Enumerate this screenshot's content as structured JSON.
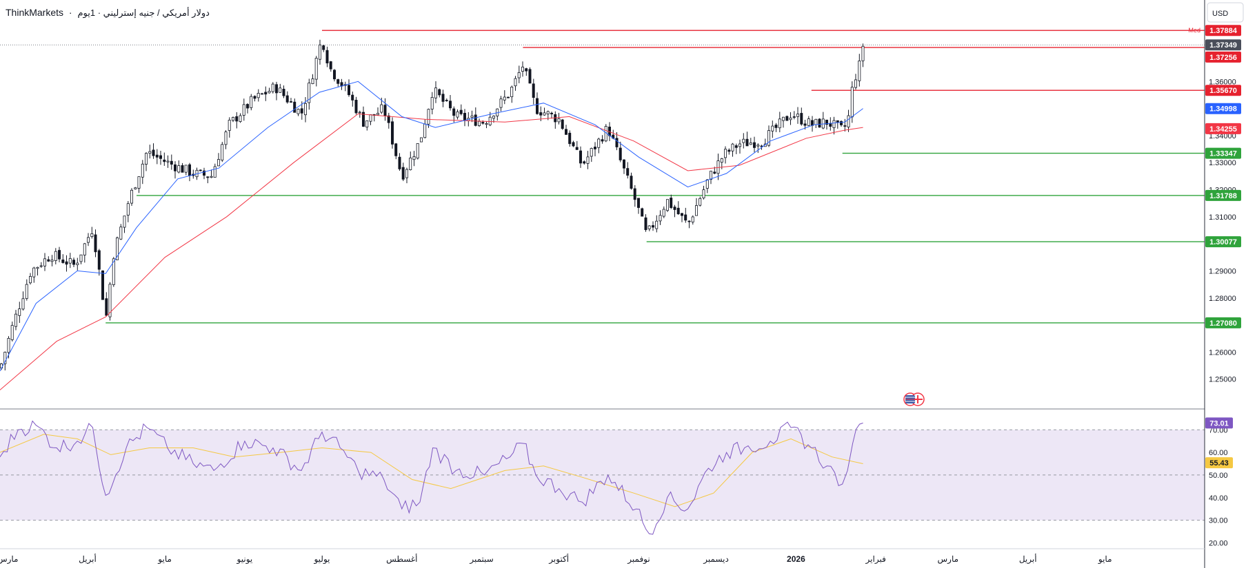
{
  "header": {
    "brand": "ThinkMarkets",
    "separator": "·",
    "symbol": "دولار أمريكي / جنيه إسترليني · 1يوم"
  },
  "currency_button": {
    "label": "USD"
  },
  "colors": {
    "resistance": "#e6212e",
    "support": "#2fa33b",
    "ema_fast": "#2962ff",
    "ema_slow": "#f23645",
    "rsi_line": "#7e57c2",
    "rsi_ma": "#f5c842",
    "rsi_band": "#ede7f6",
    "current_price": "#4a4e5a",
    "candle": "#131722"
  },
  "chart_data": [
    {
      "type": "candlestick",
      "title": "",
      "ylim": [
        1.24,
        1.385
      ],
      "y_ticks": [
        "1.25000",
        "1.26000",
        "1.27000",
        "1.28000",
        "1.29000",
        "1.30000",
        "1.31000",
        "1.32000",
        "1.33000",
        "1.34000",
        "1.35000",
        "1.36000"
      ],
      "x_ticks": [
        "مارس",
        "أبريل",
        "مايو",
        "يونيو",
        "يوليو",
        "أغسطس",
        "سبتمبر",
        "أكتوبر",
        "نوفمبر",
        "ديسمبر",
        "2026",
        "فبراير",
        "مارس",
        "أبريل",
        "مايو"
      ],
      "x_ticks_bold": [
        false,
        false,
        false,
        false,
        false,
        false,
        false,
        false,
        false,
        false,
        true,
        false,
        false,
        false,
        false
      ],
      "close_path": [
        {
          "d": "2025-02-26",
          "v": 1.254
        },
        {
          "d": "2025-03-03",
          "v": 1.27
        },
        {
          "d": "2025-03-10",
          "v": 1.29
        },
        {
          "d": "2025-03-18",
          "v": 1.296
        },
        {
          "d": "2025-03-27",
          "v": 1.292
        },
        {
          "d": "2025-04-03",
          "v": 1.306
        },
        {
          "d": "2025-04-07",
          "v": 1.28
        },
        {
          "d": "2025-04-08",
          "v": 1.271
        },
        {
          "d": "2025-04-11",
          "v": 1.296
        },
        {
          "d": "2025-04-17",
          "v": 1.316
        },
        {
          "d": "2025-04-24",
          "v": 1.334
        },
        {
          "d": "2025-05-02",
          "v": 1.33
        },
        {
          "d": "2025-05-12",
          "v": 1.326
        },
        {
          "d": "2025-05-19",
          "v": 1.325
        },
        {
          "d": "2025-05-26",
          "v": 1.344
        },
        {
          "d": "2025-06-04",
          "v": 1.353
        },
        {
          "d": "2025-06-13",
          "v": 1.358
        },
        {
          "d": "2025-06-23",
          "v": 1.348
        },
        {
          "d": "2025-06-26",
          "v": 1.358
        },
        {
          "d": "2025-07-01",
          "v": 1.376
        },
        {
          "d": "2025-07-04",
          "v": 1.365
        },
        {
          "d": "2025-07-11",
          "v": 1.356
        },
        {
          "d": "2025-07-17",
          "v": 1.345
        },
        {
          "d": "2025-07-25",
          "v": 1.35
        },
        {
          "d": "2025-08-01",
          "v": 1.325
        },
        {
          "d": "2025-08-08",
          "v": 1.338
        },
        {
          "d": "2025-08-13",
          "v": 1.357
        },
        {
          "d": "2025-08-22",
          "v": 1.347
        },
        {
          "d": "2025-09-02",
          "v": 1.345
        },
        {
          "d": "2025-09-12",
          "v": 1.356
        },
        {
          "d": "2025-09-17",
          "v": 1.366
        },
        {
          "d": "2025-09-22",
          "v": 1.35
        },
        {
          "d": "2025-10-01",
          "v": 1.346
        },
        {
          "d": "2025-10-10",
          "v": 1.329
        },
        {
          "d": "2025-10-20",
          "v": 1.343
        },
        {
          "d": "2025-10-31",
          "v": 1.315
        },
        {
          "d": "2025-11-04",
          "v": 1.303
        },
        {
          "d": "2025-11-12",
          "v": 1.316
        },
        {
          "d": "2025-11-20",
          "v": 1.307
        },
        {
          "d": "2025-11-28",
          "v": 1.324
        },
        {
          "d": "2025-12-04",
          "v": 1.333
        },
        {
          "d": "2025-12-10",
          "v": 1.337
        },
        {
          "d": "2025-12-19",
          "v": 1.338
        },
        {
          "d": "2025-12-30",
          "v": 1.348
        },
        {
          "d": "2026-01-07",
          "v": 1.344
        },
        {
          "d": "2026-01-13",
          "v": 1.345
        },
        {
          "d": "2026-01-19",
          "v": 1.342
        },
        {
          "d": "2026-01-21",
          "v": 1.345
        },
        {
          "d": "2026-01-22",
          "v": 1.35
        },
        {
          "d": "2026-01-23",
          "v": 1.359
        },
        {
          "d": "2026-01-26",
          "v": 1.367
        },
        {
          "d": "2026-01-27",
          "v": 1.3735
        }
      ],
      "ema_fast": [
        {
          "d": "2025-02-26",
          "v": 1.253
        },
        {
          "d": "2025-03-12",
          "v": 1.278
        },
        {
          "d": "2025-03-28",
          "v": 1.29
        },
        {
          "d": "2025-04-08",
          "v": 1.289
        },
        {
          "d": "2025-04-20",
          "v": 1.306
        },
        {
          "d": "2025-05-06",
          "v": 1.324
        },
        {
          "d": "2025-05-22",
          "v": 1.328
        },
        {
          "d": "2025-06-10",
          "v": 1.343
        },
        {
          "d": "2025-06-30",
          "v": 1.356
        },
        {
          "d": "2025-07-15",
          "v": 1.36
        },
        {
          "d": "2025-08-01",
          "v": 1.347
        },
        {
          "d": "2025-08-14",
          "v": 1.343
        },
        {
          "d": "2025-09-05",
          "v": 1.348
        },
        {
          "d": "2025-09-25",
          "v": 1.352
        },
        {
          "d": "2025-10-15",
          "v": 1.344
        },
        {
          "d": "2025-11-01",
          "v": 1.332
        },
        {
          "d": "2025-11-20",
          "v": 1.321
        },
        {
          "d": "2025-12-05",
          "v": 1.326
        },
        {
          "d": "2025-12-22",
          "v": 1.338
        },
        {
          "d": "2026-01-08",
          "v": 1.344
        },
        {
          "d": "2026-01-20",
          "v": 1.345
        },
        {
          "d": "2026-01-27",
          "v": 1.35
        }
      ],
      "ema_slow": [
        {
          "d": "2025-02-26",
          "v": 1.246
        },
        {
          "d": "2025-03-20",
          "v": 1.264
        },
        {
          "d": "2025-04-08",
          "v": 1.273
        },
        {
          "d": "2025-05-01",
          "v": 1.295
        },
        {
          "d": "2025-05-25",
          "v": 1.31
        },
        {
          "d": "2025-06-20",
          "v": 1.33
        },
        {
          "d": "2025-07-15",
          "v": 1.348
        },
        {
          "d": "2025-08-10",
          "v": 1.346
        },
        {
          "d": "2025-09-10",
          "v": 1.345
        },
        {
          "d": "2025-10-05",
          "v": 1.347
        },
        {
          "d": "2025-10-30",
          "v": 1.338
        },
        {
          "d": "2025-11-20",
          "v": 1.327
        },
        {
          "d": "2025-12-10",
          "v": 1.329
        },
        {
          "d": "2026-01-05",
          "v": 1.339
        },
        {
          "d": "2026-01-20",
          "v": 1.342
        },
        {
          "d": "2026-01-27",
          "v": 1.343
        }
      ],
      "levels": [
        {
          "price": 1.37884,
          "label": "1.37884",
          "kind": "resistance",
          "from": "2025-07-01",
          "note": "Med"
        },
        {
          "price": 1.37256,
          "label": "1.37256",
          "kind": "resistance",
          "from": "2025-09-17"
        },
        {
          "price": 1.3567,
          "label": "1.35670",
          "kind": "resistance",
          "from": "2026-01-07"
        },
        {
          "price": 1.33347,
          "label": "1.33347",
          "kind": "support",
          "from": "2026-01-19"
        },
        {
          "price": 1.31788,
          "label": "1.31788",
          "kind": "support",
          "from": "2025-04-20"
        },
        {
          "price": 1.30077,
          "label": "1.30077",
          "kind": "support",
          "from": "2025-11-04"
        },
        {
          "price": 1.2708,
          "label": "1.27080",
          "kind": "support",
          "from": "2025-04-08"
        }
      ],
      "current_price": {
        "price": 1.37349,
        "label": "1.37349"
      },
      "ema_fast_value": {
        "price": 1.34998,
        "label": "1.34998"
      },
      "ema_slow_value": {
        "price": 1.34255,
        "label": "1.34255"
      }
    },
    {
      "type": "line",
      "title": "",
      "ylim": [
        18,
        78
      ],
      "y_ticks": [
        "20.00",
        "30.00",
        "40.00",
        "50.00",
        "60.00",
        "70.00"
      ],
      "band": [
        30,
        70
      ],
      "midline": 50,
      "rsi": [
        {
          "d": "2025-02-26",
          "v": 58
        },
        {
          "d": "2025-03-05",
          "v": 70
        },
        {
          "d": "2025-03-12",
          "v": 72
        },
        {
          "d": "2025-03-20",
          "v": 62
        },
        {
          "d": "2025-03-28",
          "v": 65
        },
        {
          "d": "2025-04-03",
          "v": 71
        },
        {
          "d": "2025-04-08",
          "v": 41
        },
        {
          "d": "2025-04-16",
          "v": 62
        },
        {
          "d": "2025-04-24",
          "v": 71
        },
        {
          "d": "2025-05-02",
          "v": 62
        },
        {
          "d": "2025-05-12",
          "v": 55
        },
        {
          "d": "2025-05-20",
          "v": 52
        },
        {
          "d": "2025-06-01",
          "v": 65
        },
        {
          "d": "2025-06-12",
          "v": 62
        },
        {
          "d": "2025-06-23",
          "v": 52
        },
        {
          "d": "2025-07-01",
          "v": 69
        },
        {
          "d": "2025-07-08",
          "v": 62
        },
        {
          "d": "2025-07-15",
          "v": 52
        },
        {
          "d": "2025-07-25",
          "v": 48
        },
        {
          "d": "2025-08-01",
          "v": 35
        },
        {
          "d": "2025-08-08",
          "v": 38
        },
        {
          "d": "2025-08-13",
          "v": 62
        },
        {
          "d": "2025-08-22",
          "v": 52
        },
        {
          "d": "2025-09-02",
          "v": 50
        },
        {
          "d": "2025-09-12",
          "v": 58
        },
        {
          "d": "2025-09-17",
          "v": 64
        },
        {
          "d": "2025-09-22",
          "v": 50
        },
        {
          "d": "2025-10-01",
          "v": 44
        },
        {
          "d": "2025-10-10",
          "v": 38
        },
        {
          "d": "2025-10-20",
          "v": 50
        },
        {
          "d": "2025-10-31",
          "v": 35
        },
        {
          "d": "2025-11-05",
          "v": 24
        },
        {
          "d": "2025-11-12",
          "v": 40
        },
        {
          "d": "2025-11-20",
          "v": 35
        },
        {
          "d": "2025-11-28",
          "v": 53
        },
        {
          "d": "2025-12-05",
          "v": 60
        },
        {
          "d": "2025-12-12",
          "v": 62
        },
        {
          "d": "2025-12-22",
          "v": 65
        },
        {
          "d": "2025-12-30",
          "v": 71
        },
        {
          "d": "2026-01-07",
          "v": 62
        },
        {
          "d": "2026-01-13",
          "v": 54
        },
        {
          "d": "2026-01-19",
          "v": 46
        },
        {
          "d": "2026-01-21",
          "v": 52
        },
        {
          "d": "2026-01-23",
          "v": 64
        },
        {
          "d": "2026-01-27",
          "v": 73
        }
      ],
      "rsi_ma": [
        {
          "d": "2025-02-26",
          "v": 60
        },
        {
          "d": "2025-03-15",
          "v": 68
        },
        {
          "d": "2025-03-28",
          "v": 66
        },
        {
          "d": "2025-04-10",
          "v": 59
        },
        {
          "d": "2025-04-25",
          "v": 62
        },
        {
          "d": "2025-05-12",
          "v": 62
        },
        {
          "d": "2025-05-28",
          "v": 58
        },
        {
          "d": "2025-06-15",
          "v": 60
        },
        {
          "d": "2025-07-01",
          "v": 62
        },
        {
          "d": "2025-07-20",
          "v": 60
        },
        {
          "d": "2025-08-05",
          "v": 48
        },
        {
          "d": "2025-08-20",
          "v": 44
        },
        {
          "d": "2025-09-10",
          "v": 52
        },
        {
          "d": "2025-09-25",
          "v": 54
        },
        {
          "d": "2025-10-10",
          "v": 49
        },
        {
          "d": "2025-10-30",
          "v": 42
        },
        {
          "d": "2025-11-15",
          "v": 36
        },
        {
          "d": "2025-11-30",
          "v": 42
        },
        {
          "d": "2025-12-15",
          "v": 60
        },
        {
          "d": "2025-12-30",
          "v": 66
        },
        {
          "d": "2026-01-15",
          "v": 58
        },
        {
          "d": "2026-01-27",
          "v": 55
        }
      ],
      "rsi_value": {
        "v": 73.01,
        "label": "73.01"
      },
      "ma_value": {
        "v": 55.43,
        "label": "55.43"
      }
    }
  ]
}
